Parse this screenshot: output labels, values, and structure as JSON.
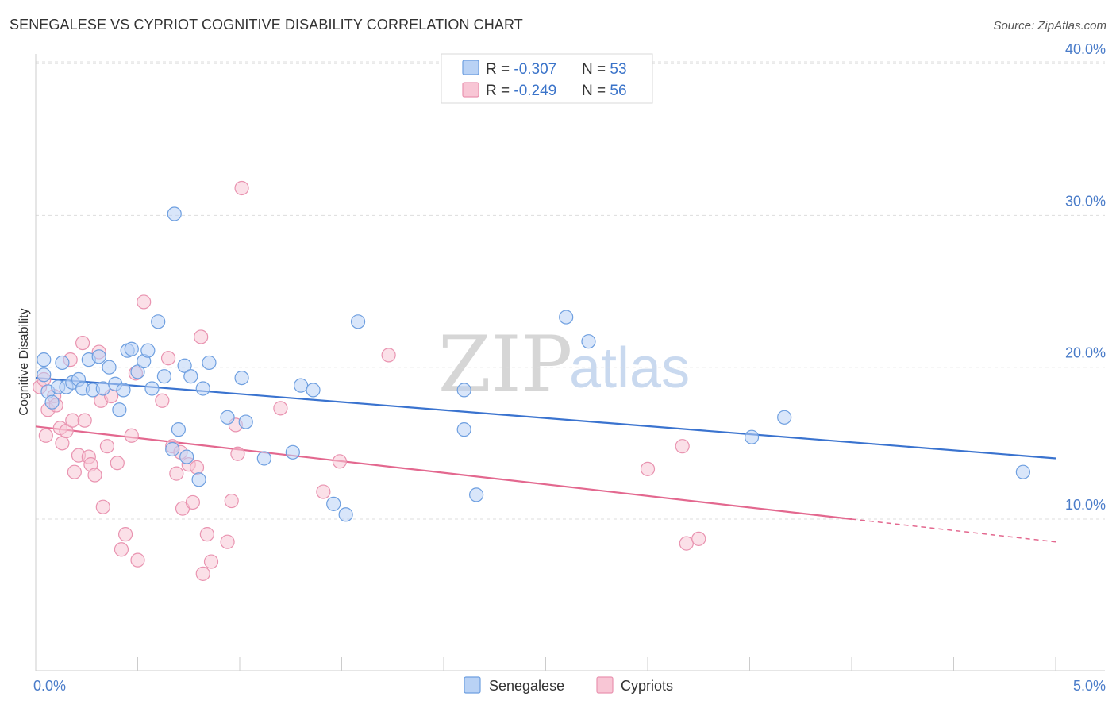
{
  "title": "SENEGALESE VS CYPRIOT COGNITIVE DISABILITY CORRELATION CHART",
  "source": "Source: ZipAtlas.com",
  "watermark": {
    "zip": "ZIP",
    "atlas": "atlas"
  },
  "colors": {
    "senegalese_fill": "#b9d2f5",
    "senegalese_stroke": "#6e9fe0",
    "senegalese_line": "#3a73cf",
    "cypriots_fill": "#f8c6d5",
    "cypriots_stroke": "#e993b0",
    "cypriots_line": "#e3688f",
    "grid": "#dddddd",
    "tick_label": "#4a7cc9"
  },
  "legend": {
    "rows": [
      {
        "r_label": "R = ",
        "r_value": "-0.307",
        "n_label": "N = ",
        "n_value": "53",
        "series": "senegalese"
      },
      {
        "r_label": "R = ",
        "r_value": "-0.249",
        "n_label": "N = ",
        "n_value": "56",
        "series": "cypriots"
      }
    ]
  },
  "bottom_legend": [
    {
      "label": "Senegalese",
      "series": "senegalese"
    },
    {
      "label": "Cypriots",
      "series": "cypriots"
    }
  ],
  "chart_data": {
    "type": "scatter",
    "title": "SENEGALESE VS CYPRIOT COGNITIVE DISABILITY CORRELATION CHART",
    "xlabel": "",
    "ylabel": "Cognitive Disability",
    "xlim": [
      0,
      5
    ],
    "ylim": [
      0,
      42
    ],
    "x_tick_labels": [
      "0.0%",
      "5.0%"
    ],
    "y_ticks": [
      10,
      20,
      30,
      40
    ],
    "y_tick_labels": [
      "10.0%",
      "20.0%",
      "30.0%",
      "40.0%"
    ],
    "grid": true,
    "legend_placement": "top-center",
    "series": [
      {
        "name": "Senegalese",
        "color": "#6e9fe0",
        "trend": {
          "x": [
            0,
            5
          ],
          "y": [
            19.3,
            14.0
          ],
          "dashed_from": null
        },
        "points": [
          [
            0.04,
            20.5
          ],
          [
            0.04,
            19.5
          ],
          [
            0.06,
            18.4
          ],
          [
            0.08,
            17.7
          ],
          [
            0.11,
            18.7
          ],
          [
            0.13,
            20.3
          ],
          [
            0.15,
            18.7
          ],
          [
            0.18,
            19.0
          ],
          [
            0.21,
            19.2
          ],
          [
            0.23,
            18.6
          ],
          [
            0.26,
            20.5
          ],
          [
            0.28,
            18.5
          ],
          [
            0.31,
            20.7
          ],
          [
            0.33,
            18.6
          ],
          [
            0.36,
            20.0
          ],
          [
            0.39,
            18.9
          ],
          [
            0.41,
            17.2
          ],
          [
            0.43,
            18.5
          ],
          [
            0.45,
            21.1
          ],
          [
            0.47,
            21.2
          ],
          [
            0.5,
            19.7
          ],
          [
            0.53,
            20.4
          ],
          [
            0.55,
            21.1
          ],
          [
            0.57,
            18.6
          ],
          [
            0.6,
            23.0
          ],
          [
            0.63,
            19.4
          ],
          [
            0.67,
            14.6
          ],
          [
            0.68,
            30.1
          ],
          [
            0.7,
            15.9
          ],
          [
            0.73,
            20.1
          ],
          [
            0.74,
            14.1
          ],
          [
            0.76,
            19.4
          ],
          [
            0.8,
            12.6
          ],
          [
            0.82,
            18.6
          ],
          [
            0.85,
            20.3
          ],
          [
            0.94,
            16.7
          ],
          [
            1.01,
            19.3
          ],
          [
            1.03,
            16.4
          ],
          [
            1.12,
            14.0
          ],
          [
            1.26,
            14.4
          ],
          [
            1.3,
            18.8
          ],
          [
            1.36,
            18.5
          ],
          [
            1.46,
            11.0
          ],
          [
            1.52,
            10.3
          ],
          [
            1.58,
            23.0
          ],
          [
            2.1,
            18.5
          ],
          [
            2.1,
            15.9
          ],
          [
            2.16,
            11.6
          ],
          [
            2.6,
            23.3
          ],
          [
            2.71,
            21.7
          ],
          [
            3.51,
            15.4
          ],
          [
            3.67,
            16.7
          ],
          [
            4.84,
            13.1
          ]
        ]
      },
      {
        "name": "Cypriots",
        "color": "#e993b0",
        "trend": {
          "x": [
            0,
            4.0,
            5
          ],
          "y": [
            16.1,
            10.0,
            8.5
          ],
          "dashed_from": 4.0
        },
        "points": [
          [
            0.02,
            18.7
          ],
          [
            0.04,
            19.2
          ],
          [
            0.05,
            15.5
          ],
          [
            0.06,
            17.2
          ],
          [
            0.09,
            18.1
          ],
          [
            0.1,
            17.5
          ],
          [
            0.12,
            16.0
          ],
          [
            0.13,
            15.0
          ],
          [
            0.15,
            15.8
          ],
          [
            0.17,
            20.5
          ],
          [
            0.18,
            16.5
          ],
          [
            0.19,
            13.1
          ],
          [
            0.21,
            14.2
          ],
          [
            0.23,
            21.6
          ],
          [
            0.24,
            16.5
          ],
          [
            0.26,
            14.1
          ],
          [
            0.27,
            13.6
          ],
          [
            0.29,
            12.9
          ],
          [
            0.31,
            21.0
          ],
          [
            0.32,
            17.8
          ],
          [
            0.33,
            10.8
          ],
          [
            0.35,
            14.8
          ],
          [
            0.37,
            18.1
          ],
          [
            0.4,
            13.7
          ],
          [
            0.42,
            8.0
          ],
          [
            0.44,
            9.0
          ],
          [
            0.47,
            15.5
          ],
          [
            0.49,
            19.6
          ],
          [
            0.5,
            7.3
          ],
          [
            0.53,
            24.3
          ],
          [
            0.62,
            17.8
          ],
          [
            0.65,
            20.6
          ],
          [
            0.67,
            14.8
          ],
          [
            0.69,
            13.0
          ],
          [
            0.71,
            14.4
          ],
          [
            0.72,
            10.7
          ],
          [
            0.75,
            13.6
          ],
          [
            0.77,
            11.1
          ],
          [
            0.79,
            13.4
          ],
          [
            0.81,
            22.0
          ],
          [
            0.82,
            6.4
          ],
          [
            0.84,
            9.0
          ],
          [
            0.86,
            7.2
          ],
          [
            0.94,
            8.5
          ],
          [
            0.96,
            11.2
          ],
          [
            0.98,
            16.2
          ],
          [
            0.99,
            14.3
          ],
          [
            1.01,
            31.8
          ],
          [
            1.2,
            17.3
          ],
          [
            1.41,
            11.8
          ],
          [
            1.49,
            13.8
          ],
          [
            1.73,
            20.8
          ],
          [
            3.0,
            13.3
          ],
          [
            3.17,
            14.8
          ],
          [
            3.19,
            8.4
          ],
          [
            3.25,
            8.7
          ]
        ]
      }
    ]
  }
}
